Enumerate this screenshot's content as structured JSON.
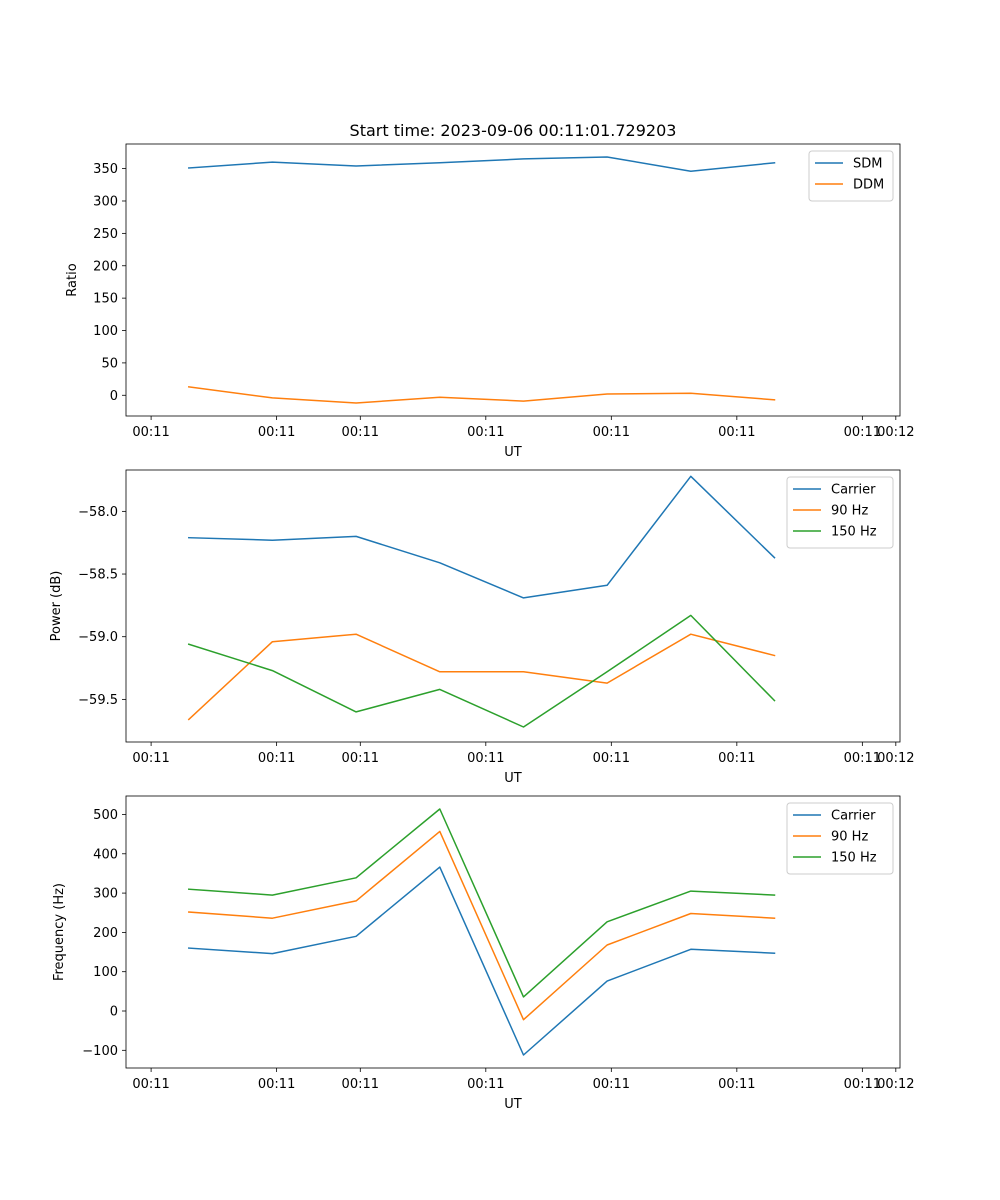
{
  "figure": {
    "title": "Start time: 2023-09-06 00:11:01.729203"
  },
  "colors": {
    "blue": "#1f77b4",
    "orange": "#ff7f0e",
    "green": "#2ca02c"
  },
  "chart_data": [
    {
      "type": "line",
      "title": "Start time: 2023-09-06 00:11:01.729203",
      "xlabel": "UT",
      "ylabel": "Ratio",
      "x": [
        1,
        2,
        3,
        4,
        5,
        6,
        7,
        8
      ],
      "xlim": [
        0.25,
        9.5
      ],
      "xticks": [
        0.55,
        2.05,
        3.05,
        4.55,
        6.05,
        7.55,
        9.05,
        9.45
      ],
      "xtick_labels": [
        "00:11",
        "00:11",
        "00:11",
        "00:11",
        "00:11",
        "00:11",
        "00:11",
        "00:12"
      ],
      "ylim": [
        -32,
        388
      ],
      "yticks": [
        0,
        50,
        100,
        150,
        200,
        250,
        300,
        350
      ],
      "ytick_labels": [
        "0",
        "50",
        "100",
        "150",
        "200",
        "250",
        "300",
        "350"
      ],
      "legend_position": "top-right",
      "series": [
        {
          "name": "SDM",
          "color": "#1f77b4",
          "values": [
            351,
            360,
            354,
            359,
            365,
            368,
            346,
            359
          ]
        },
        {
          "name": "DDM",
          "color": "#ff7f0e",
          "values": [
            13,
            -4,
            -12,
            -3,
            -9,
            2,
            3,
            -7
          ]
        }
      ]
    },
    {
      "type": "line",
      "xlabel": "UT",
      "ylabel": "Power (dB)",
      "x": [
        1,
        2,
        3,
        4,
        5,
        6,
        7,
        8
      ],
      "xlim": [
        0.25,
        9.5
      ],
      "xticks": [
        0.55,
        2.05,
        3.05,
        4.55,
        6.05,
        7.55,
        9.05,
        9.45
      ],
      "xtick_labels": [
        "00:11",
        "00:11",
        "00:11",
        "00:11",
        "00:11",
        "00:11",
        "00:11",
        "00:12"
      ],
      "ylim": [
        -59.84,
        -57.67
      ],
      "yticks": [
        -59.5,
        -59.0,
        -58.5,
        -58.0
      ],
      "ytick_labels": [
        "−59.5",
        "−59.0",
        "−58.5",
        "−58.0"
      ],
      "legend_position": "top-right",
      "series": [
        {
          "name": "Carrier",
          "color": "#1f77b4",
          "values": [
            -58.21,
            -58.23,
            -58.2,
            -58.41,
            -58.69,
            -58.59,
            -57.72,
            -58.37
          ]
        },
        {
          "name": "90 Hz",
          "color": "#ff7f0e",
          "values": [
            -59.66,
            -59.04,
            -58.98,
            -59.28,
            -59.28,
            -59.37,
            -58.98,
            -59.15
          ]
        },
        {
          "name": "150 Hz",
          "color": "#2ca02c",
          "values": [
            -59.06,
            -59.27,
            -59.6,
            -59.42,
            -59.72,
            -59.28,
            -58.83,
            -59.51
          ]
        }
      ]
    },
    {
      "type": "line",
      "xlabel": "UT",
      "ylabel": "Frequency (Hz)",
      "x": [
        1,
        2,
        3,
        4,
        5,
        6,
        7,
        8
      ],
      "xlim": [
        0.25,
        9.5
      ],
      "xticks": [
        0.55,
        2.05,
        3.05,
        4.55,
        6.05,
        7.55,
        9.05,
        9.45
      ],
      "xtick_labels": [
        "00:11",
        "00:11",
        "00:11",
        "00:11",
        "00:11",
        "00:11",
        "00:11",
        "00:12"
      ],
      "ylim": [
        -145,
        547
      ],
      "yticks": [
        -100,
        0,
        100,
        200,
        300,
        400,
        500
      ],
      "ytick_labels": [
        "−100",
        "0",
        "100",
        "200",
        "300",
        "400",
        "500"
      ],
      "legend_position": "top-right",
      "series": [
        {
          "name": "Carrier",
          "color": "#1f77b4",
          "values": [
            160,
            146,
            190,
            366,
            -112,
            76,
            157,
            147
          ]
        },
        {
          "name": "90 Hz",
          "color": "#ff7f0e",
          "values": [
            252,
            236,
            280,
            457,
            -22,
            168,
            248,
            236
          ]
        },
        {
          "name": "150 Hz",
          "color": "#2ca02c",
          "values": [
            310,
            295,
            339,
            514,
            36,
            227,
            305,
            295
          ]
        }
      ]
    }
  ]
}
